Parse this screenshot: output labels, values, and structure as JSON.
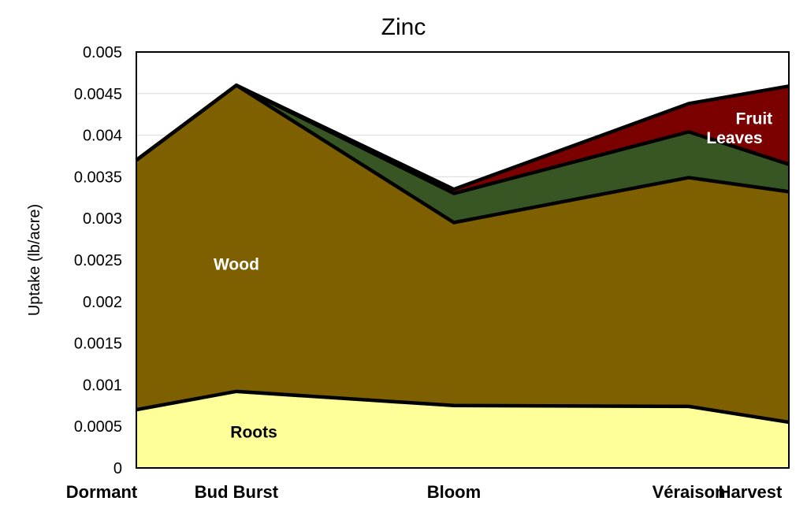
{
  "chart_data": {
    "type": "area",
    "stacked": true,
    "title": "Zinc",
    "xlabel": "",
    "ylabel": "Uptake (lb/acre)",
    "x_labels": [
      "Dormant",
      "Bud Burst",
      "Bloom",
      "Véraison",
      "Harvest"
    ],
    "x_positions": [
      0,
      0.92,
      2.92,
      5.08,
      6
    ],
    "xlim": [
      0,
      6
    ],
    "ylim": [
      0,
      0.005
    ],
    "yticks": [
      "0",
      "0.0005",
      "0.001",
      "0.0015",
      "0.002",
      "0.0025",
      "0.003",
      "0.0035",
      "0.004",
      "0.0045",
      "0.005"
    ],
    "grid": true,
    "legend": "inline labels",
    "series": [
      {
        "name": "Roots",
        "color": "#ffff99",
        "label_color": "#000000",
        "values": [
          0.0007,
          0.00092,
          0.00075,
          0.00074,
          0.00055
        ]
      },
      {
        "name": "Wood",
        "color": "#7f6000",
        "label_color": "#ffffff",
        "values": [
          0.003,
          0.00368,
          0.0022,
          0.00275,
          0.00277
        ]
      },
      {
        "name": "Leaves",
        "color": "#375623",
        "label_color": "#ffffff",
        "values": [
          0,
          0,
          0.00035,
          0.00055,
          0.00033
        ]
      },
      {
        "name": "Fruit",
        "color": "#7b0000",
        "label_color": "#ffffff",
        "values": [
          0,
          0,
          5e-05,
          0.00034,
          0.00094
        ]
      }
    ]
  }
}
